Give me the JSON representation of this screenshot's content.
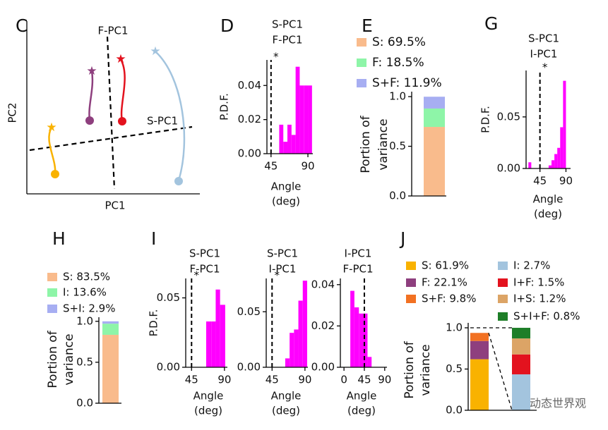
{
  "panel_c": {
    "panel": "C",
    "axis_x": "PC1",
    "axis_y": "PC2",
    "lines": [
      "F-PC1",
      "S-PC1"
    ]
  },
  "watermark": "动态世界观",
  "chart_data": [
    {
      "type": "histogram",
      "panel": "D",
      "title": [
        "S-PC1",
        "F-PC1"
      ],
      "ylabel": "P.D.F.",
      "xlabel": [
        "Angle",
        "(deg)"
      ],
      "bins": [
        55,
        60,
        65,
        70,
        75,
        80,
        85,
        90,
        95
      ],
      "values": [
        0.017,
        0.007,
        0.017,
        0.011,
        0.051,
        0.04,
        0.04,
        0.04
      ],
      "color": "#ff00ff",
      "xlim": [
        40,
        96
      ],
      "ylim": [
        0,
        0.055
      ],
      "xticks": [
        45,
        90
      ],
      "yticks": [
        {
          "value": 0,
          "label": "0.00"
        },
        {
          "value": 0.02,
          "label": "0.02"
        },
        {
          "value": 0.04,
          "label": "0.04"
        }
      ],
      "refline": 45,
      "annotation": "*"
    },
    {
      "type": "stacked_bar",
      "panel": "E",
      "ylabel": [
        "Portion of",
        "variance"
      ],
      "ylim": [
        0,
        1.05
      ],
      "yticks": [
        {
          "value": 0,
          "label": "0.0"
        },
        {
          "value": 0.5,
          "label": "0.5"
        },
        {
          "value": 1,
          "label": "1.0"
        }
      ],
      "series": [
        {
          "name": "S: 69.5%",
          "color": "#f9bb8c",
          "values": [
            0.695
          ]
        },
        {
          "name": "F: 18.5%",
          "color": "#8ef5a8",
          "values": [
            0.185
          ]
        },
        {
          "name": "S+F: 11.9%",
          "color": "#a7aef2",
          "values": [
            0.119
          ]
        }
      ]
    },
    {
      "type": "histogram",
      "panel": "G",
      "title": [
        "S-PC1",
        "I-PC1"
      ],
      "ylabel": "P.D.F.",
      "xlabel": [
        "Angle",
        "(deg)"
      ],
      "bins": [
        25,
        30,
        35,
        40,
        45,
        50,
        55,
        60,
        65,
        70,
        75,
        80,
        85,
        90
      ],
      "values": [
        0.006,
        0,
        0,
        0,
        0,
        0,
        0,
        0.003,
        0.008,
        0.014,
        0.02,
        0.04,
        0.085
      ],
      "color": "#ff00ff",
      "xlim": [
        21,
        98
      ],
      "ylim": [
        0,
        0.095
      ],
      "xticks": [
        45,
        90
      ],
      "yticks": [
        {
          "value": 0,
          "label": "0.00"
        },
        {
          "value": 0.05,
          "label": "0.05"
        }
      ],
      "refline": 45,
      "annotation": "*"
    },
    {
      "type": "stacked_bar",
      "panel": "H",
      "ylabel": [
        "Portion of",
        "variance"
      ],
      "ylim": [
        0,
        1.05
      ],
      "yticks": [
        {
          "value": 0,
          "label": "0.0"
        },
        {
          "value": 0.5,
          "label": "0.5"
        },
        {
          "value": 1,
          "label": "1.0"
        }
      ],
      "series": [
        {
          "name": "S: 83.5%",
          "color": "#f9bb8c",
          "values": [
            0.835
          ]
        },
        {
          "name": "I: 13.6%",
          "color": "#8ef5a8",
          "values": [
            0.136
          ]
        },
        {
          "name": "S+I: 2.9%",
          "color": "#a7aef2",
          "values": [
            0.029
          ]
        }
      ]
    },
    {
      "type": "histogram",
      "panel": "I",
      "title": [
        "S-PC1",
        "F-PC1"
      ],
      "ylabel": "P.D.F.",
      "xlabel": [
        "Angle",
        "(deg)"
      ],
      "bins": [
        65,
        72,
        78,
        84,
        91
      ],
      "values": [
        0.033,
        0.033,
        0.056,
        0.045
      ],
      "color": "#ff00ff",
      "xlim": [
        37,
        94
      ],
      "ylim": [
        0,
        0.064
      ],
      "xticks": [
        45,
        90
      ],
      "yticks": [
        {
          "value": 0,
          "label": "0.00"
        },
        {
          "value": 0.05,
          "label": "0.05"
        }
      ],
      "refline": 45,
      "annotation": "*"
    },
    {
      "type": "histogram",
      "title": [
        "S-PC1",
        "I-PC1"
      ],
      "xlabel": [
        "Angle",
        "(deg)"
      ],
      "bins": [
        63,
        69,
        75,
        81,
        87,
        93
      ],
      "values": [
        0.008,
        0.031,
        0.034,
        0.06,
        0.078
      ],
      "color": "#ff00ff",
      "xlim": [
        37,
        94
      ],
      "ylim": [
        0,
        0.08
      ],
      "xticks": [
        45,
        90
      ],
      "yticks": [
        {
          "value": 0,
          "label": "0.00"
        },
        {
          "value": 0.05,
          "label": "0.05"
        }
      ],
      "refline": 45,
      "annotation": "*"
    },
    {
      "type": "histogram",
      "title": [
        "I-PC1",
        "F-PC1"
      ],
      "xlabel": [
        "Angle",
        "(deg)"
      ],
      "bins": [
        14,
        23,
        33,
        42,
        52,
        61
      ],
      "values": [
        0.037,
        0.029,
        0.026,
        0.026,
        0.005
      ],
      "color": "#ff00ff",
      "xlim": [
        -8,
        95
      ],
      "ylim": [
        0,
        0.043
      ],
      "xticks": [
        0,
        45,
        90
      ],
      "yticks": [
        {
          "value": 0,
          "label": "0.00"
        },
        {
          "value": 0.02,
          "label": "0.02"
        },
        {
          "value": 0.04,
          "label": "0.04"
        }
      ],
      "refline": 45
    },
    {
      "type": "stacked_bar",
      "panel": "J",
      "ylabel": [
        "Portion of",
        "variance"
      ],
      "ylim": [
        0,
        1.06
      ],
      "yticks": [
        {
          "value": 0,
          "label": "0.0"
        },
        {
          "value": 0.5,
          "label": "0.5"
        },
        {
          "value": 1,
          "label": "1.0"
        }
      ],
      "series": [
        {
          "name": "S: 61.9%",
          "color": "#f9b200",
          "values": [
            0.619
          ]
        },
        {
          "name": "F: 22.1%",
          "color": "#8e3f7e",
          "values": [
            0.221
          ]
        },
        {
          "name": "S+F: 9.8%",
          "color": "#f27122",
          "values": [
            0.098
          ]
        }
      ],
      "inset_series": [
        {
          "name": "I: 2.7%",
          "color": "#a3c4de",
          "values": [
            0.027
          ]
        },
        {
          "name": "I+F: 1.5%",
          "color": "#e3121e",
          "values": [
            0.015
          ]
        },
        {
          "name": "I+S: 1.2%",
          "color": "#dca466",
          "values": [
            0.012
          ]
        },
        {
          "name": "S+I+F: 0.8%",
          "color": "#1e7e28",
          "values": [
            0.008
          ]
        }
      ]
    }
  ]
}
